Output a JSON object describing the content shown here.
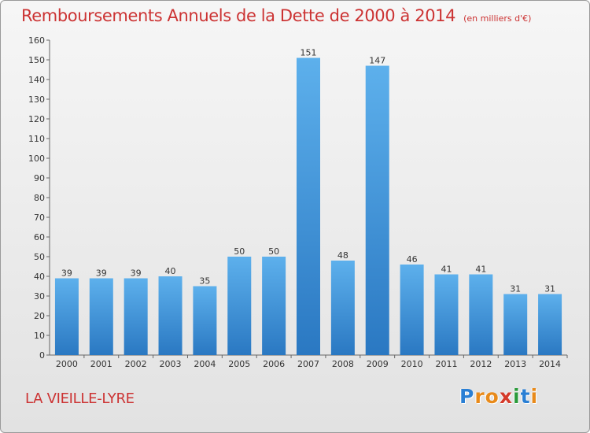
{
  "chart_data": {
    "type": "bar",
    "title": "Remboursements Annuels de la Dette de 2000 à 2014",
    "unit_note": "(en milliers d'€)",
    "categories": [
      "2000",
      "2001",
      "2002",
      "2003",
      "2004",
      "2005",
      "2006",
      "2007",
      "2008",
      "2009",
      "2010",
      "2011",
      "2012",
      "2013",
      "2014"
    ],
    "values": [
      39,
      39,
      39,
      40,
      35,
      50,
      50,
      151,
      48,
      147,
      46,
      41,
      41,
      31,
      31
    ],
    "ylim": [
      0,
      160
    ],
    "yticks": [
      0,
      10,
      20,
      30,
      40,
      50,
      60,
      70,
      80,
      90,
      100,
      110,
      120,
      130,
      140,
      150,
      160
    ],
    "grid": false,
    "bar_color": "#3d8fd6",
    "title_color": "#cc3333"
  },
  "footer": {
    "commune": "LA VIEILLE-LYRE"
  },
  "logo": {
    "letters": [
      "P",
      "r",
      "o",
      "x",
      "i",
      "t",
      "i"
    ],
    "colors": [
      "#2a7fd4",
      "#e88a1a",
      "#e88a1a",
      "#d43a2a",
      "#2a9a3a",
      "#2a7fd4",
      "#e88a1a"
    ]
  }
}
